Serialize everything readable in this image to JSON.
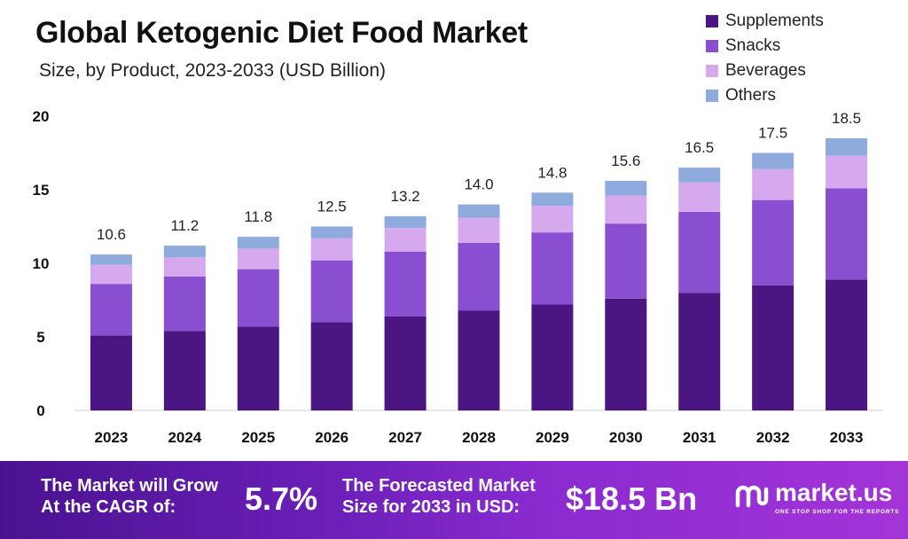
{
  "header": {
    "title": "Global Ketogenic Diet Food Market",
    "subtitle": "Size, by Product, 2023-2033 (USD Billion)"
  },
  "colors": {
    "Supplements": "#4b1682",
    "Snacks": "#8a4fd0",
    "Beverages": "#d6a9ef",
    "Others": "#8faadc"
  },
  "chart_data": {
    "type": "bar",
    "stacked": true,
    "categories": [
      "2023",
      "2024",
      "2025",
      "2026",
      "2027",
      "2028",
      "2029",
      "2030",
      "2031",
      "2032",
      "2033"
    ],
    "series": [
      {
        "name": "Supplements",
        "values": [
          5.1,
          5.4,
          5.7,
          6.0,
          6.4,
          6.8,
          7.2,
          7.6,
          8.0,
          8.5,
          8.9
        ]
      },
      {
        "name": "Snacks",
        "values": [
          3.5,
          3.7,
          3.9,
          4.2,
          4.4,
          4.6,
          4.9,
          5.1,
          5.5,
          5.8,
          6.2
        ]
      },
      {
        "name": "Beverages",
        "values": [
          1.3,
          1.3,
          1.4,
          1.5,
          1.6,
          1.7,
          1.8,
          1.9,
          2.0,
          2.1,
          2.2
        ]
      },
      {
        "name": "Others",
        "values": [
          0.7,
          0.8,
          0.8,
          0.8,
          0.8,
          0.9,
          0.9,
          1.0,
          1.0,
          1.1,
          1.2
        ]
      }
    ],
    "totals": [
      "10.6",
      "11.2",
      "11.8",
      "12.5",
      "13.2",
      "14.0",
      "14.8",
      "15.6",
      "16.5",
      "17.5",
      "18.5"
    ],
    "yticks": [
      "0",
      "5",
      "10",
      "15",
      "20"
    ],
    "ylim": [
      0,
      20
    ],
    "grid": false,
    "legend_position": "top-right"
  },
  "footer": {
    "cagr_line1": "The Market will Grow",
    "cagr_line2": "At the CAGR of:",
    "cagr_value": "5.7%",
    "forecast_line1": "The Forecasted Market",
    "forecast_line2": "Size for 2033 in USD:",
    "forecast_value": "$18.5 Bn",
    "brand": "market.us",
    "brand_tagline": "ONE STOP SHOP FOR THE REPORTS"
  }
}
